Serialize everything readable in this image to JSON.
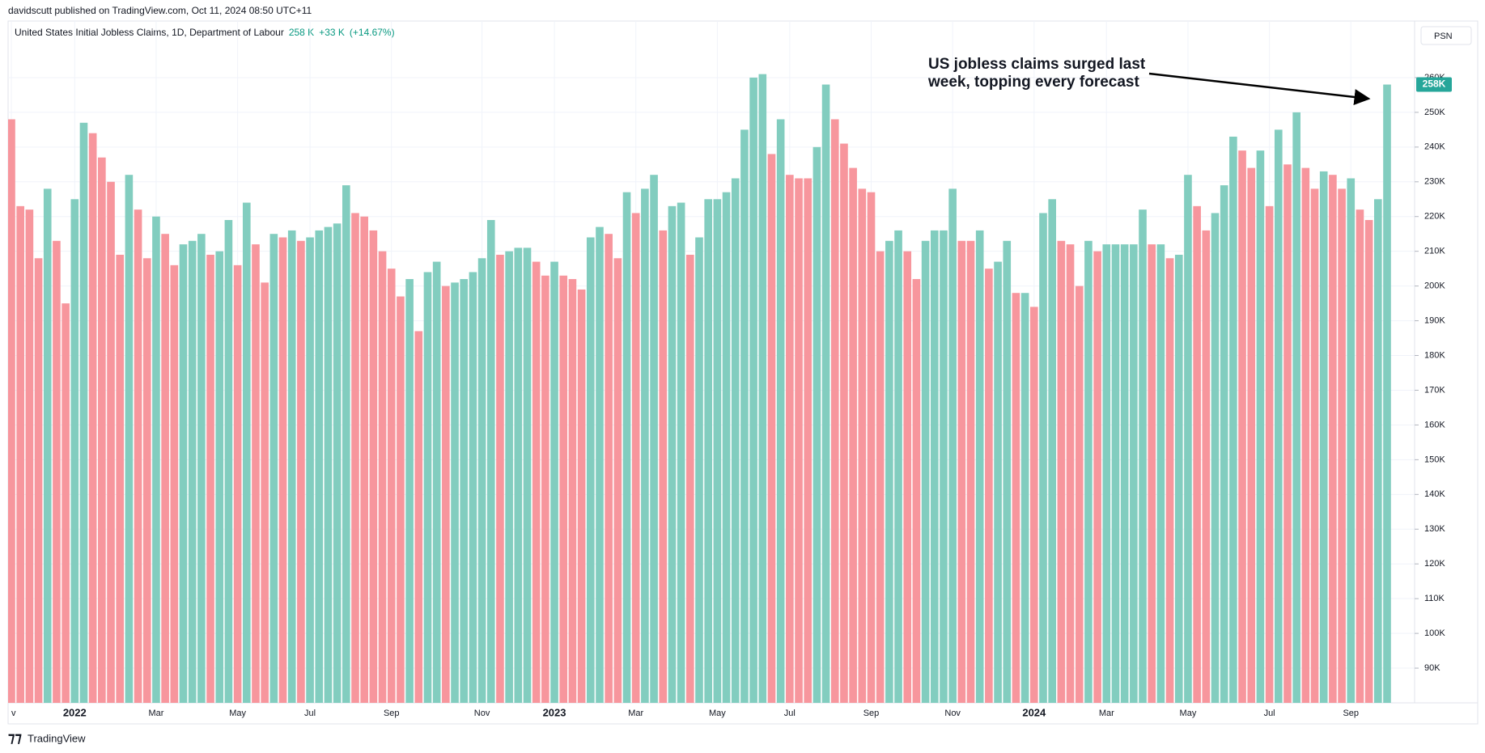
{
  "header": {
    "published": "davidscutt published on TradingView.com, Oct 11, 2024 08:50 UTC+11",
    "button": "PSN",
    "brand": "TradingView"
  },
  "chart_data": {
    "type": "bar",
    "legend": {
      "name": "United States Initial Jobless Claims, 1D, Department of Labour",
      "value": "258 K",
      "change": "+33 K",
      "change_pct": "(+14.67%)"
    },
    "last_value_label": "258K",
    "annotation": [
      "US jobless claims surged last",
      "week, topping every forecast"
    ],
    "categories": [
      "v",
      null,
      null,
      null,
      null,
      null,
      null,
      "2022",
      null,
      null,
      null,
      null,
      null,
      null,
      null,
      null,
      "Mar",
      null,
      null,
      null,
      null,
      null,
      null,
      null,
      null,
      "May",
      null,
      null,
      null,
      null,
      null,
      null,
      null,
      "Jul",
      null,
      null,
      null,
      null,
      null,
      null,
      null,
      null,
      "Sep",
      null,
      null,
      null,
      null,
      null,
      null,
      null,
      null,
      null,
      "Nov",
      null,
      null,
      null,
      null,
      null,
      null,
      null,
      "2023",
      null,
      null,
      null,
      null,
      null,
      null,
      null,
      null,
      "Mar",
      null,
      null,
      null,
      null,
      null,
      null,
      null,
      null,
      "May",
      null,
      null,
      null,
      null,
      null,
      null,
      null,
      "Jul",
      null,
      null,
      null,
      null,
      null,
      null,
      null,
      null,
      "Sep",
      null,
      null,
      null,
      null,
      null,
      null,
      null,
      null,
      "Nov",
      null,
      null,
      null,
      null,
      null,
      null,
      null,
      null,
      "2024",
      null,
      null,
      null,
      null,
      null,
      null,
      null,
      "Mar",
      null,
      null,
      null,
      null,
      null,
      null,
      null,
      null,
      "May",
      null,
      null,
      null,
      null,
      null,
      null,
      null,
      null,
      "Jul",
      null,
      null,
      null,
      null,
      null,
      null,
      null,
      null,
      "Sep",
      null,
      null,
      null,
      null
    ],
    "values": [
      248000,
      223000,
      222000,
      208000,
      228000,
      213000,
      195000,
      225000,
      247000,
      244000,
      237000,
      230000,
      209000,
      232000,
      222000,
      208000,
      220000,
      215000,
      206000,
      212000,
      213000,
      215000,
      209000,
      210000,
      219000,
      206000,
      224000,
      212000,
      201000,
      215000,
      214000,
      216000,
      213000,
      214000,
      216000,
      217000,
      218000,
      229000,
      221000,
      220000,
      216000,
      210000,
      205000,
      197000,
      202000,
      187000,
      204000,
      207000,
      200000,
      201000,
      202000,
      204000,
      208000,
      219000,
      209000,
      210000,
      211000,
      211000,
      207000,
      203000,
      207000,
      203000,
      202000,
      199000,
      214000,
      217000,
      215000,
      208000,
      227000,
      221000,
      228000,
      232000,
      216000,
      223000,
      224000,
      209000,
      214000,
      225000,
      225000,
      227000,
      231000,
      245000,
      260000,
      261000,
      238000,
      248000,
      232000,
      231000,
      231000,
      240000,
      258000,
      248000,
      241000,
      234000,
      228000,
      227000,
      210000,
      213000,
      216000,
      210000,
      202000,
      213000,
      216000,
      216000,
      228000,
      213000,
      213000,
      216000,
      205000,
      207000,
      213000,
      198000,
      198000,
      194000,
      221000,
      225000,
      213000,
      212000,
      200000,
      213000,
      210000,
      212000,
      212000,
      212000,
      212000,
      222000,
      212000,
      212000,
      208000,
      209000,
      232000,
      223000,
      216000,
      221000,
      229000,
      243000,
      239000,
      234000,
      239000,
      223000,
      245000,
      235000,
      250000,
      234000,
      228000,
      233000,
      232000,
      228000,
      231000,
      222000,
      219000,
      225000,
      258000
    ],
    "colors": [
      "#f7969d",
      "#f7969d",
      "#f7969d",
      "#f7969d",
      "#82cdbf",
      "#f7969d",
      "#f7969d",
      "#82cdbf",
      "#82cdbf",
      "#f7969d",
      "#f7969d",
      "#f7969d",
      "#f7969d",
      "#82cdbf",
      "#f7969d",
      "#f7969d",
      "#82cdbf",
      "#f7969d",
      "#f7969d",
      "#82cdbf",
      "#82cdbf",
      "#82cdbf",
      "#f7969d",
      "#82cdbf",
      "#82cdbf",
      "#f7969d",
      "#82cdbf",
      "#f7969d",
      "#f7969d",
      "#82cdbf",
      "#f7969d",
      "#82cdbf",
      "#f7969d",
      "#82cdbf",
      "#82cdbf",
      "#82cdbf",
      "#82cdbf",
      "#82cdbf",
      "#f7969d",
      "#f7969d",
      "#f7969d",
      "#f7969d",
      "#f7969d",
      "#f7969d",
      "#82cdbf",
      "#f7969d",
      "#82cdbf",
      "#82cdbf",
      "#f7969d",
      "#82cdbf",
      "#82cdbf",
      "#82cdbf",
      "#82cdbf",
      "#82cdbf",
      "#f7969d",
      "#82cdbf",
      "#82cdbf",
      "#82cdbf",
      "#f7969d",
      "#f7969d",
      "#82cdbf",
      "#f7969d",
      "#f7969d",
      "#f7969d",
      "#82cdbf",
      "#82cdbf",
      "#f7969d",
      "#f7969d",
      "#82cdbf",
      "#f7969d",
      "#82cdbf",
      "#82cdbf",
      "#f7969d",
      "#82cdbf",
      "#82cdbf",
      "#f7969d",
      "#82cdbf",
      "#82cdbf",
      "#82cdbf",
      "#82cdbf",
      "#82cdbf",
      "#82cdbf",
      "#82cdbf",
      "#82cdbf",
      "#f7969d",
      "#82cdbf",
      "#f7969d",
      "#f7969d",
      "#f7969d",
      "#82cdbf",
      "#82cdbf",
      "#f7969d",
      "#f7969d",
      "#f7969d",
      "#f7969d",
      "#f7969d",
      "#f7969d",
      "#82cdbf",
      "#82cdbf",
      "#f7969d",
      "#f7969d",
      "#82cdbf",
      "#82cdbf",
      "#82cdbf",
      "#82cdbf",
      "#f7969d",
      "#f7969d",
      "#82cdbf",
      "#f7969d",
      "#82cdbf",
      "#82cdbf",
      "#f7969d",
      "#82cdbf",
      "#f7969d",
      "#82cdbf",
      "#82cdbf",
      "#f7969d",
      "#f7969d",
      "#f7969d",
      "#82cdbf",
      "#f7969d",
      "#82cdbf",
      "#82cdbf",
      "#82cdbf",
      "#82cdbf",
      "#82cdbf",
      "#f7969d",
      "#82cdbf",
      "#f7969d",
      "#82cdbf",
      "#82cdbf",
      "#f7969d",
      "#f7969d",
      "#82cdbf",
      "#82cdbf",
      "#82cdbf",
      "#f7969d",
      "#f7969d",
      "#82cdbf",
      "#f7969d",
      "#82cdbf",
      "#f7969d",
      "#82cdbf",
      "#f7969d",
      "#f7969d",
      "#82cdbf",
      "#f7969d",
      "#f7969d",
      "#82cdbf",
      "#f7969d",
      "#f7969d",
      "#82cdbf",
      "#82cdbf"
    ],
    "badge_color": "#26a69a",
    "ylim": [
      80000,
      270000
    ],
    "yticks": [
      {
        "value": 90000,
        "label": "90K"
      },
      {
        "value": 100000,
        "label": "100K"
      },
      {
        "value": 110000,
        "label": "110K"
      },
      {
        "value": 120000,
        "label": "120K"
      },
      {
        "value": 130000,
        "label": "130K"
      },
      {
        "value": 140000,
        "label": "140K"
      },
      {
        "value": 150000,
        "label": "150K"
      },
      {
        "value": 160000,
        "label": "160K"
      },
      {
        "value": 170000,
        "label": "170K"
      },
      {
        "value": 180000,
        "label": "180K"
      },
      {
        "value": 190000,
        "label": "190K"
      },
      {
        "value": 200000,
        "label": "200K"
      },
      {
        "value": 210000,
        "label": "210K"
      },
      {
        "value": 220000,
        "label": "220K"
      },
      {
        "value": 230000,
        "label": "230K"
      },
      {
        "value": 240000,
        "label": "240K"
      },
      {
        "value": 250000,
        "label": "250K"
      },
      {
        "value": 260000,
        "label": "260K"
      }
    ],
    "grid": true
  }
}
